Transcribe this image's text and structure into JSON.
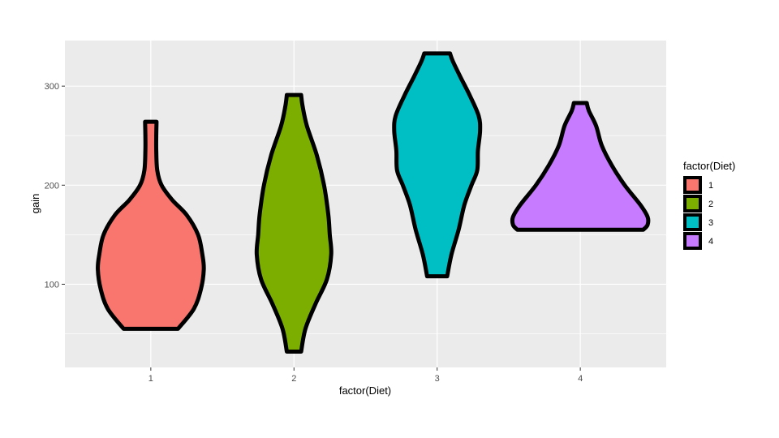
{
  "chart_data": {
    "type": "violin",
    "xlabel": "factor(Diet)",
    "ylabel": "gain",
    "categories": [
      "1",
      "2",
      "3",
      "4"
    ],
    "ylim": [
      16,
      346
    ],
    "yticks": [
      100,
      200,
      300
    ],
    "grid": true,
    "legend": {
      "title": "factor(Diet)",
      "position": "right",
      "entries": [
        "1",
        "2",
        "3",
        "4"
      ]
    },
    "colors": {
      "1": "#F8766D",
      "2": "#7CAE00",
      "3": "#00BFC4",
      "4": "#C77CFF",
      "outline": "#000000",
      "panel": "#EBEBEB",
      "grid": "#FFFFFF"
    },
    "series": [
      {
        "category": "1",
        "range": [
          55,
          264
        ],
        "profile": [
          [
            55,
            0.19
          ],
          [
            75,
            0.3
          ],
          [
            95,
            0.35
          ],
          [
            115,
            0.37
          ],
          [
            130,
            0.36
          ],
          [
            150,
            0.33
          ],
          [
            170,
            0.25
          ],
          [
            185,
            0.15
          ],
          [
            200,
            0.075
          ],
          [
            215,
            0.045
          ],
          [
            235,
            0.038
          ],
          [
            250,
            0.038
          ],
          [
            264,
            0.04
          ]
        ]
      },
      {
        "category": "2",
        "range": [
          32,
          291
        ],
        "profile": [
          [
            32,
            0.05
          ],
          [
            55,
            0.08
          ],
          [
            80,
            0.15
          ],
          [
            105,
            0.23
          ],
          [
            130,
            0.26
          ],
          [
            150,
            0.25
          ],
          [
            170,
            0.24
          ],
          [
            200,
            0.21
          ],
          [
            230,
            0.16
          ],
          [
            260,
            0.09
          ],
          [
            280,
            0.06
          ],
          [
            291,
            0.05
          ]
        ]
      },
      {
        "category": "3",
        "range": [
          108,
          333
        ],
        "profile": [
          [
            108,
            0.07
          ],
          [
            130,
            0.1
          ],
          [
            155,
            0.15
          ],
          [
            180,
            0.19
          ],
          [
            200,
            0.24
          ],
          [
            215,
            0.28
          ],
          [
            235,
            0.285
          ],
          [
            255,
            0.3
          ],
          [
            270,
            0.29
          ],
          [
            290,
            0.23
          ],
          [
            310,
            0.16
          ],
          [
            325,
            0.11
          ],
          [
            333,
            0.09
          ]
        ]
      },
      {
        "category": "4",
        "range": [
          155,
          283
        ],
        "profile": [
          [
            155,
            0.44
          ],
          [
            160,
            0.47
          ],
          [
            168,
            0.47
          ],
          [
            180,
            0.42
          ],
          [
            200,
            0.31
          ],
          [
            220,
            0.22
          ],
          [
            240,
            0.15
          ],
          [
            260,
            0.11
          ],
          [
            275,
            0.06
          ],
          [
            283,
            0.045
          ]
        ]
      }
    ]
  }
}
